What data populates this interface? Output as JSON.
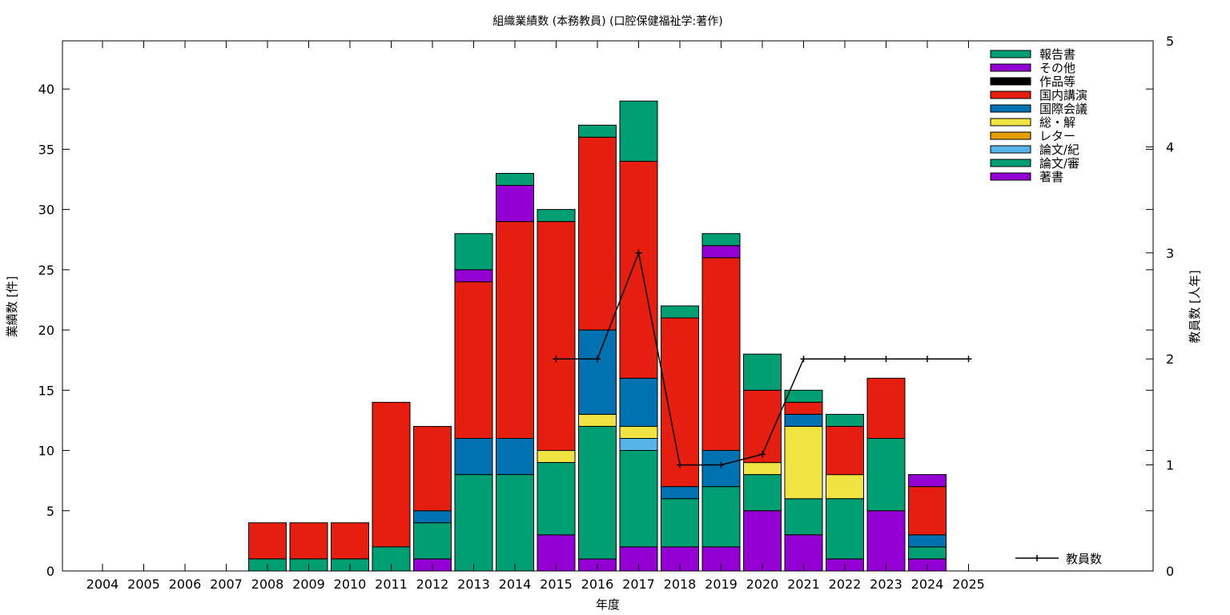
{
  "chart_data": {
    "type": "bar",
    "stacked": true,
    "title": "組織業績数 (本務教員) (口腔保健福祉学:著作)",
    "xlabel": "年度",
    "ylabel": "業績数 [件]",
    "y2label": "教員数 [人年]",
    "ylim": [
      0,
      44
    ],
    "yticks": [
      0,
      5,
      10,
      15,
      20,
      25,
      30,
      35,
      40
    ],
    "y2lim": [
      0,
      5
    ],
    "y2ticks": [
      0,
      1,
      2,
      3,
      4,
      5
    ],
    "legend_position": "top-right",
    "categories": [
      "2004",
      "2005",
      "2006",
      "2007",
      "2008",
      "2009",
      "2010",
      "2011",
      "2012",
      "2013",
      "2014",
      "2015",
      "2016",
      "2017",
      "2018",
      "2019",
      "2020",
      "2021",
      "2022",
      "2023",
      "2024",
      "2025"
    ],
    "series": [
      {
        "name": "著書",
        "color": "#9400d3",
        "values": [
          0,
          0,
          0,
          0,
          0,
          0,
          0,
          0,
          1,
          0,
          0,
          3,
          1,
          2,
          2,
          2,
          5,
          3,
          1,
          5,
          1,
          0
        ]
      },
      {
        "name": "論文/審",
        "color": "#009e73",
        "values": [
          0,
          0,
          0,
          0,
          1,
          1,
          1,
          2,
          3,
          8,
          8,
          6,
          11,
          8,
          4,
          5,
          3,
          3,
          5,
          6,
          1,
          0
        ]
      },
      {
        "name": "論文/紀",
        "color": "#56b4e9",
        "values": [
          0,
          0,
          0,
          0,
          0,
          0,
          0,
          0,
          0,
          0,
          0,
          0,
          0,
          1,
          0,
          0,
          0,
          0,
          0,
          0,
          0,
          0
        ]
      },
      {
        "name": "レター",
        "color": "#e69f00",
        "values": [
          0,
          0,
          0,
          0,
          0,
          0,
          0,
          0,
          0,
          0,
          0,
          0,
          0,
          0,
          0,
          0,
          0,
          0,
          0,
          0,
          0,
          0
        ]
      },
      {
        "name": "総・解",
        "color": "#f0e442",
        "values": [
          0,
          0,
          0,
          0,
          0,
          0,
          0,
          0,
          0,
          0,
          0,
          1,
          1,
          1,
          0,
          0,
          1,
          6,
          2,
          0,
          0,
          0
        ]
      },
      {
        "name": "国際会議",
        "color": "#0072b2",
        "values": [
          0,
          0,
          0,
          0,
          0,
          0,
          0,
          0,
          1,
          3,
          3,
          0,
          7,
          4,
          1,
          3,
          0,
          1,
          0,
          0,
          1,
          0
        ]
      },
      {
        "name": "国内講演",
        "color": "#e51e10",
        "values": [
          0,
          0,
          0,
          0,
          3,
          3,
          3,
          12,
          7,
          13,
          18,
          19,
          16,
          18,
          14,
          16,
          6,
          1,
          4,
          5,
          4,
          0
        ]
      },
      {
        "name": "作品等",
        "color": "#000000",
        "values": [
          0,
          0,
          0,
          0,
          0,
          0,
          0,
          0,
          0,
          0,
          0,
          0,
          0,
          0,
          0,
          0,
          0,
          0,
          0,
          0,
          0,
          0
        ]
      },
      {
        "name": "その他",
        "color": "#9400d3",
        "values": [
          0,
          0,
          0,
          0,
          0,
          0,
          0,
          0,
          0,
          1,
          3,
          0,
          0,
          0,
          0,
          1,
          0,
          0,
          0,
          0,
          1,
          0
        ]
      },
      {
        "name": "報告書",
        "color": "#009e73",
        "values": [
          0,
          0,
          0,
          0,
          0,
          0,
          0,
          0,
          0,
          3,
          1,
          1,
          1,
          5,
          1,
          1,
          3,
          1,
          1,
          0,
          0,
          0
        ]
      }
    ],
    "line_series": {
      "name": "教員数",
      "color": "#000000",
      "axis": "y2",
      "x": [
        "2015",
        "2016",
        "2017",
        "2018",
        "2019",
        "2020",
        "2021",
        "2022",
        "2023",
        "2024",
        "2025"
      ],
      "values": [
        2,
        2,
        3,
        1,
        1,
        1.1,
        2,
        2,
        2,
        2,
        2
      ]
    }
  }
}
